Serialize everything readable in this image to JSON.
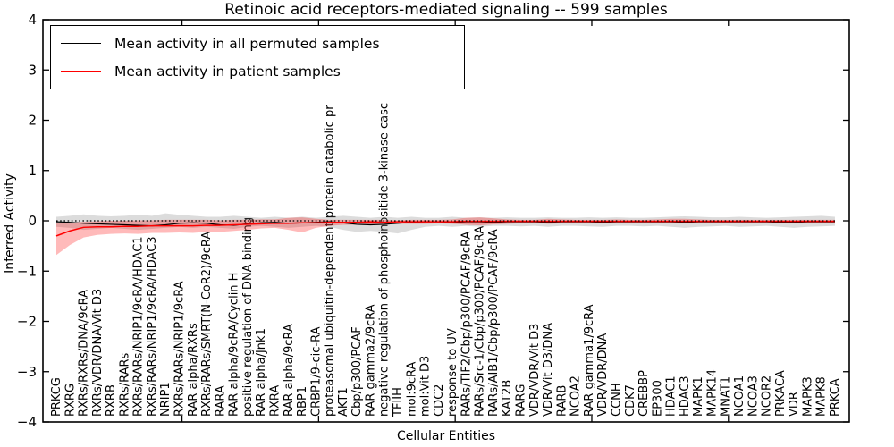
{
  "chart_data": {
    "type": "line",
    "title": "Retinoic acid receptors-mediated signaling -- 599 samples",
    "xlabel": "Cellular Entities",
    "ylabel": "Inferred Activity",
    "ylim": [
      -4,
      4
    ],
    "xlim_hint": [
      -1,
      58
    ],
    "grid": false,
    "legend_position": "upper left",
    "zero_reference_line": {
      "y": 0,
      "style": "dotted",
      "color": "#000000"
    },
    "y_ticks": [
      "4",
      "3",
      "2",
      "1",
      "0",
      "−1",
      "−2",
      "−3",
      "−4"
    ],
    "x_tick_indices": [
      9.2,
      19.2,
      29.2,
      39.2,
      49.2
    ],
    "categories": [
      "PRKCG",
      "RXRG",
      "RXRs/RXRs/DNA/9cRA",
      "RXRs/VDR/DNA/Vit D3",
      "RXRB",
      "RXRs/RARs",
      "RXRs/RARs/NRIP1/9cRA/HDAC1",
      "RXRs/RARs/NRIP1/9cRA/HDAC3",
      "NRIP1",
      "RXRs/RARs/NRIP1/9cRA",
      "RAR alpha/RXRs",
      "RXRs/RARs/SMRT(N-CoR2)/9cRA",
      "RARA",
      "RAR alpha/9cRA/Cyclin H",
      "positive regulation of DNA binding",
      "RAR alpha/Jnk1",
      "RXRA",
      "RAR alpha/9cRA",
      "RBP1",
      "CRBP1/9-cic-RA",
      "proteasomal ubiquitin-dependent protein catabolic pr",
      "AKT1",
      "Cbp/p300/PCAF",
      "RAR gamma2/9cRA",
      "negative regulation of phosphoinositide 3-kinase casc",
      "TFIIH",
      "mol:9cRA",
      "mol:Vit D3",
      "CDC2",
      "response to UV",
      "RARs/TIF2/Cbp/p300/PCAF/9cRA",
      "RARs/Src-1/Cbp/p300/PCAF/9cRA",
      "RARs/AIB1/Cbp/p300/PCAF/9cRA",
      "KAT2B",
      "RARG",
      "VDR/VDR/Vit D3",
      "VDR/Vit D3/DNA",
      "RARB",
      "NCOA2",
      "RAR gamma1/9cRA",
      "VDR/VDR/DNA",
      "CCNH",
      "CDK7",
      "CREBBP",
      "EP300",
      "HDAC1",
      "HDAC3",
      "MAPK1",
      "MAPK14",
      "MNAT1",
      "NCOA1",
      "NCOA3",
      "NCOR2",
      "PRKACA",
      "VDR",
      "MAPK3",
      "MAPK8",
      "PRKCA"
    ],
    "series": [
      {
        "name": "Mean activity in all permuted samples",
        "color": "#000000",
        "width": 1.2,
        "values": [
          -0.02,
          -0.03,
          -0.05,
          -0.06,
          -0.07,
          -0.08,
          -0.09,
          -0.1,
          -0.08,
          -0.05,
          -0.04,
          -0.05,
          -0.08,
          -0.09,
          -0.06,
          -0.04,
          -0.03,
          -0.05,
          -0.04,
          -0.03,
          -0.02,
          -0.04,
          -0.07,
          -0.08,
          -0.07,
          -0.05,
          -0.03,
          -0.02,
          -0.02,
          -0.03,
          -0.02,
          -0.02,
          -0.03,
          -0.02,
          -0.02,
          -0.02,
          -0.03,
          -0.02,
          -0.02,
          -0.02,
          -0.03,
          -0.02,
          -0.02,
          -0.02,
          -0.02,
          -0.02,
          -0.03,
          -0.02,
          -0.02,
          -0.02,
          -0.02,
          -0.02,
          -0.02,
          -0.03,
          -0.03,
          -0.02,
          -0.02,
          -0.02
        ]
      },
      {
        "name": "Mean activity in patient samples",
        "color": "#ff0000",
        "width": 1.5,
        "values": [
          -0.3,
          -0.2,
          -0.13,
          -0.12,
          -0.12,
          -0.11,
          -0.11,
          -0.1,
          -0.1,
          -0.1,
          -0.1,
          -0.09,
          -0.09,
          -0.08,
          -0.07,
          -0.06,
          -0.05,
          -0.05,
          -0.04,
          -0.04,
          -0.03,
          -0.03,
          -0.03,
          -0.02,
          -0.03,
          -0.02,
          -0.02,
          -0.02,
          -0.02,
          -0.02,
          -0.01,
          -0.01,
          -0.01,
          -0.01,
          -0.01,
          -0.01,
          -0.01,
          -0.01,
          -0.01,
          -0.01,
          -0.01,
          -0.01,
          -0.01,
          -0.01,
          -0.01,
          -0.01,
          -0.01,
          -0.01,
          -0.01,
          -0.01,
          -0.01,
          -0.01,
          -0.01,
          -0.01,
          -0.01,
          -0.01,
          -0.01,
          -0.01
        ]
      }
    ],
    "bands": [
      {
        "series": "Mean activity in all permuted samples",
        "color": "rgba(128,128,128,0.28)",
        "upper": [
          0.08,
          0.1,
          0.13,
          0.1,
          0.09,
          0.1,
          0.12,
          0.1,
          0.15,
          0.12,
          0.1,
          0.08,
          0.08,
          0.1,
          0.08,
          0.06,
          0.08,
          0.06,
          0.08,
          0.06,
          0.08,
          0.1,
          0.08,
          0.06,
          0.08,
          0.06,
          0.08,
          0.06,
          0.06,
          0.08,
          0.06,
          0.07,
          0.06,
          0.07,
          0.06,
          0.06,
          0.07,
          0.06,
          0.06,
          0.07,
          0.06,
          0.07,
          0.06,
          0.06,
          0.07,
          0.08,
          0.09,
          0.08,
          0.07,
          0.07,
          0.08,
          0.07,
          0.06,
          0.07,
          0.08,
          0.09,
          0.1,
          0.08
        ],
        "lower": [
          -0.12,
          -0.14,
          -0.18,
          -0.16,
          -0.14,
          -0.16,
          -0.18,
          -0.16,
          -0.14,
          -0.12,
          -0.14,
          -0.12,
          -0.14,
          -0.16,
          -0.12,
          -0.1,
          -0.12,
          -0.14,
          -0.12,
          -0.1,
          -0.12,
          -0.18,
          -0.22,
          -0.2,
          -0.22,
          -0.25,
          -0.18,
          -0.12,
          -0.1,
          -0.12,
          -0.1,
          -0.12,
          -0.1,
          -0.1,
          -0.11,
          -0.1,
          -0.12,
          -0.1,
          -0.1,
          -0.11,
          -0.12,
          -0.1,
          -0.1,
          -0.11,
          -0.1,
          -0.12,
          -0.14,
          -0.12,
          -0.11,
          -0.1,
          -0.12,
          -0.11,
          -0.1,
          -0.12,
          -0.14,
          -0.12,
          -0.11,
          -0.1
        ]
      },
      {
        "series": "Mean activity in patient samples",
        "color": "rgba(255,0,0,0.27)",
        "upper": [
          -0.05,
          -0.03,
          -0.02,
          -0.01,
          0.0,
          0.0,
          0.01,
          0.01,
          0.02,
          0.02,
          0.02,
          0.02,
          0.01,
          0.02,
          0.02,
          0.03,
          0.03,
          0.06,
          0.07,
          0.04,
          0.02,
          0.02,
          0.02,
          0.02,
          0.02,
          0.01,
          0.02,
          0.02,
          0.02,
          0.03,
          0.06,
          0.07,
          0.05,
          0.03,
          0.02,
          0.02,
          0.04,
          0.03,
          0.02,
          0.02,
          0.02,
          0.03,
          0.02,
          0.02,
          0.03,
          0.04,
          0.04,
          0.03,
          0.02,
          0.02,
          0.02,
          0.02,
          0.02,
          0.02,
          0.02,
          0.02,
          0.02,
          0.02
        ],
        "lower": [
          -0.68,
          -0.48,
          -0.33,
          -0.28,
          -0.26,
          -0.25,
          -0.26,
          -0.24,
          -0.24,
          -0.23,
          -0.24,
          -0.22,
          -0.22,
          -0.2,
          -0.18,
          -0.15,
          -0.14,
          -0.18,
          -0.23,
          -0.14,
          -0.1,
          -0.08,
          -0.08,
          -0.07,
          -0.08,
          -0.06,
          -0.06,
          -0.06,
          -0.05,
          -0.06,
          -0.08,
          -0.09,
          -0.07,
          -0.06,
          -0.05,
          -0.04,
          -0.06,
          -0.05,
          -0.04,
          -0.04,
          -0.05,
          -0.05,
          -0.04,
          -0.04,
          -0.05,
          -0.05,
          -0.05,
          -0.04,
          -0.04,
          -0.04,
          -0.04,
          -0.04,
          -0.04,
          -0.04,
          -0.04,
          -0.04,
          -0.04,
          -0.04
        ]
      }
    ]
  }
}
